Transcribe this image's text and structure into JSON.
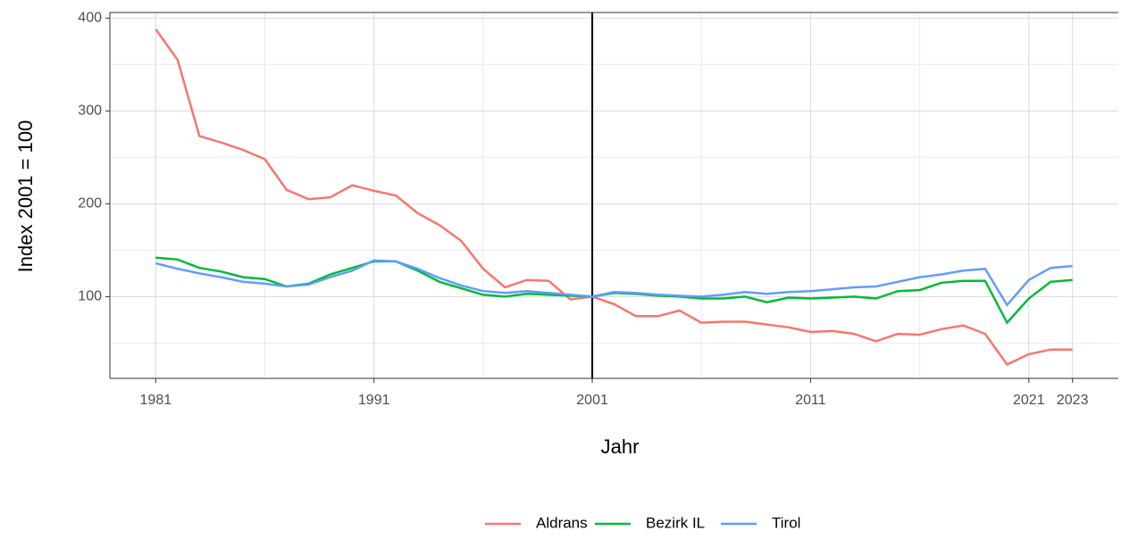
{
  "chart_data": {
    "type": "line",
    "xlabel": "Jahr",
    "ylabel": "Index 2001 = 100",
    "x": [
      1981,
      1982,
      1983,
      1984,
      1985,
      1986,
      1987,
      1988,
      1989,
      1990,
      1991,
      1992,
      1993,
      1994,
      1995,
      1996,
      1997,
      1998,
      1999,
      2000,
      2001,
      2002,
      2003,
      2004,
      2005,
      2006,
      2007,
      2008,
      2009,
      2010,
      2011,
      2012,
      2013,
      2014,
      2015,
      2016,
      2017,
      2018,
      2019,
      2020,
      2021,
      2022,
      2023
    ],
    "series": [
      {
        "name": "Aldrans",
        "color": "#F8766D",
        "values": [
          388,
          355,
          273,
          266,
          258,
          248,
          215,
          205,
          207,
          220,
          214,
          209,
          190,
          177,
          160,
          130,
          110,
          118,
          117,
          97,
          100,
          92,
          79,
          79,
          85,
          72,
          73,
          73,
          70,
          67,
          62,
          63,
          60,
          52,
          60,
          59,
          65,
          69,
          60,
          27,
          38,
          43,
          43
        ]
      },
      {
        "name": "Bezirk IL",
        "color": "#00BA38",
        "values": [
          142,
          140,
          131,
          127,
          121,
          119,
          111,
          114,
          124,
          131,
          138,
          138,
          128,
          116,
          109,
          102,
          100,
          103,
          102,
          101,
          100,
          104,
          103,
          101,
          100,
          98,
          98,
          100,
          94,
          99,
          98,
          99,
          100,
          98,
          106,
          107,
          115,
          117,
          117,
          72,
          98,
          116,
          118
        ]
      },
      {
        "name": "Tirol",
        "color": "#619CFF",
        "values": [
          136,
          130,
          125,
          121,
          116,
          114,
          111,
          113,
          121,
          128,
          139,
          138,
          130,
          120,
          112,
          106,
          104,
          106,
          104,
          102,
          100,
          105,
          104,
          102,
          101,
          100,
          102,
          105,
          103,
          105,
          106,
          108,
          110,
          111,
          116,
          121,
          124,
          128,
          130,
          91,
          118,
          131,
          133
        ]
      }
    ],
    "xlim": [
      1978.9,
      2025.1
    ],
    "xticks": [
      1981,
      1991,
      2001,
      2011,
      2021,
      2023
    ],
    "xminorticks": [
      1986,
      1996,
      2006,
      2016
    ],
    "ylim": [
      12,
      406
    ],
    "yticks": [
      100,
      200,
      300,
      400
    ],
    "yminorticks": [
      50,
      150,
      250,
      350
    ],
    "vline": 2001,
    "grid": true,
    "legend": "bottom"
  }
}
